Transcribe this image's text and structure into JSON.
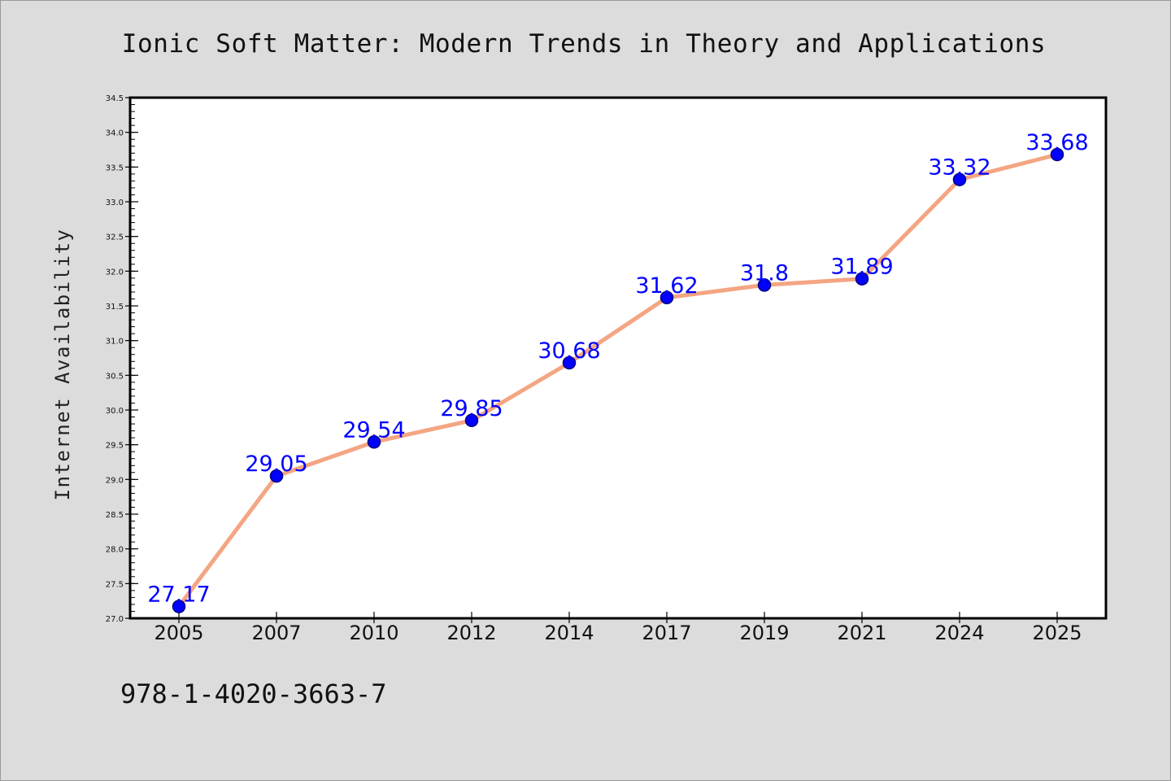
{
  "chart_data": {
    "type": "line",
    "title": "Ionic Soft Matter: Modern Trends in Theory and Applications",
    "xlabel": "",
    "ylabel": "Internet Availability",
    "footer_text": "978-1-4020-3663-7",
    "categories": [
      "2005",
      "2007",
      "2010",
      "2012",
      "2014",
      "2017",
      "2019",
      "2021",
      "2024",
      "2025"
    ],
    "series": [
      {
        "values": [
          27.17,
          29.05,
          29.54,
          29.85,
          30.68,
          31.62,
          31.8,
          31.89,
          33.32,
          33.68
        ],
        "labels": [
          "27.17",
          "29.05",
          "29.54",
          "29.85",
          "30.68",
          "31.62",
          "31.8",
          "31.89",
          "33.32",
          "33.68"
        ]
      }
    ],
    "ylim": [
      27.0,
      34.5
    ],
    "yticks": [
      "27.0",
      "27.5",
      "28.0",
      "28.5",
      "29.0",
      "29.5",
      "30.0",
      "30.5",
      "31.0",
      "31.5",
      "32.0",
      "32.5",
      "33.0",
      "33.5",
      "34.0",
      "34.5"
    ],
    "grid": false,
    "legend": "none",
    "colors": {
      "line": "#f4a582",
      "marker_fill": "#0000ff",
      "marker_edge": "#000080",
      "data_label": "#0000ff",
      "background": "#dcdcdc",
      "plot_background": "#ffffff"
    }
  }
}
